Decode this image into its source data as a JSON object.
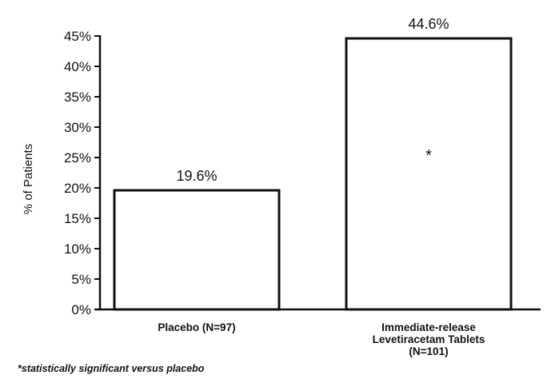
{
  "chart_data": {
    "type": "bar",
    "title": "",
    "xlabel": "",
    "ylabel": "% of Patients",
    "ylim": [
      0,
      45
    ],
    "yticks": [
      "0%",
      "5%",
      "10%",
      "15%",
      "20%",
      "25%",
      "30%",
      "35%",
      "40%",
      "45%"
    ],
    "ytick_values": [
      0,
      5,
      10,
      15,
      20,
      25,
      30,
      35,
      40,
      45
    ],
    "categories": [
      [
        "Placebo (N=97)"
      ],
      [
        "Immediate-release",
        "Levetiracetam Tablets",
        "(N=101)"
      ]
    ],
    "values": [
      19.6,
      44.6
    ],
    "data_labels": [
      "19.6%",
      "44.6%"
    ],
    "significance_markers": [
      "",
      "*"
    ],
    "grid": false,
    "legend": "none",
    "bar_fill": "#ffffff",
    "bar_stroke": "#111111"
  },
  "footnote": "*statistically significant versus placebo"
}
